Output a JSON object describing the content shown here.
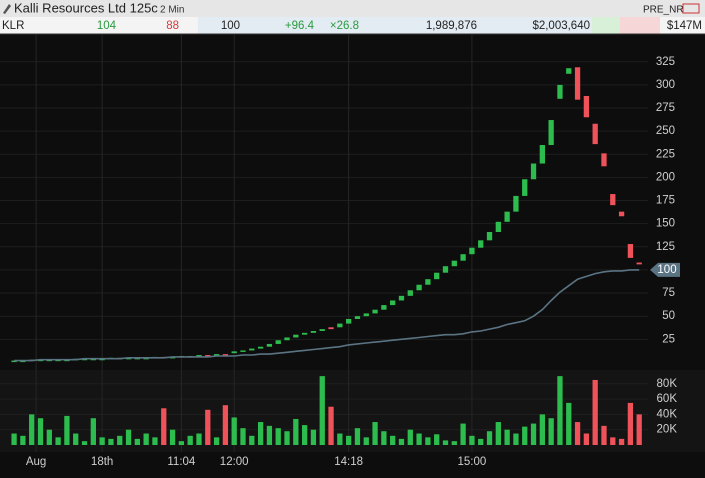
{
  "header": {
    "title": "Kalli Resources Ltd 125c",
    "interval": "2 Min",
    "status": "PRE_NR",
    "symbol": "KLR",
    "bid_size": "104",
    "ask_size": "88",
    "last": "100",
    "change": "+96.4",
    "ratio": "×26.8",
    "volume": "1,989,876",
    "dollar_volume": "$2,003,640",
    "market_cap": "$147M"
  },
  "chart_data": {
    "type": "candlestick",
    "up_color": "#2dbd4e",
    "down_color": "#f0525a",
    "vwap_color": "#5b7484",
    "xlim": [
      -1.6,
      72
    ],
    "xticks": [
      {
        "value": 2.5,
        "label": "Aug"
      },
      {
        "value": 10,
        "label": "18th"
      },
      {
        "value": 19,
        "label": "11:04"
      },
      {
        "value": 25,
        "label": "12:00"
      },
      {
        "value": 38,
        "label": "14:18"
      },
      {
        "value": 52,
        "label": "15:00"
      }
    ],
    "ylim": [
      -6,
      355
    ],
    "yticks": [
      25,
      50,
      75,
      100,
      125,
      150,
      175,
      200,
      225,
      250,
      275,
      300,
      325
    ],
    "vlim": [
      0,
      98000
    ],
    "vticks": [
      {
        "value": 20000,
        "label": "20K"
      },
      {
        "value": 40000,
        "label": "40K"
      },
      {
        "value": 60000,
        "label": "60K"
      },
      {
        "value": 80000,
        "label": "80K"
      }
    ],
    "open": [
      2,
      2,
      2,
      3,
      3,
      3,
      3,
      3,
      4,
      4,
      4,
      4,
      5,
      5,
      5,
      5,
      5,
      6,
      6,
      6,
      7,
      7,
      8,
      8,
      9,
      10,
      12,
      13,
      15,
      17,
      20,
      24,
      27,
      30,
      32,
      34,
      38,
      38,
      42,
      47,
      50,
      53,
      57,
      62,
      67,
      72,
      78,
      84,
      90,
      97,
      104,
      110,
      117,
      124,
      132,
      141,
      152,
      163,
      180,
      198,
      215,
      235,
      285,
      312,
      319,
      288,
      258,
      226,
      182,
      163,
      128,
      108
    ],
    "close": [
      2,
      2,
      3,
      3,
      3,
      3,
      3,
      4,
      4,
      4,
      4,
      5,
      5,
      5,
      5,
      5,
      6,
      5,
      6,
      7,
      7,
      8,
      7,
      9,
      8,
      12,
      13,
      15,
      17,
      20,
      24,
      27,
      30,
      32,
      34,
      36,
      36,
      42,
      47,
      50,
      53,
      57,
      62,
      67,
      72,
      78,
      84,
      90,
      97,
      104,
      110,
      117,
      124,
      132,
      141,
      152,
      163,
      180,
      198,
      215,
      235,
      262,
      300,
      318,
      284,
      265,
      236,
      212,
      170,
      158,
      113,
      106
    ],
    "volume": [
      15000,
      12000,
      40000,
      35000,
      20000,
      10000,
      38000,
      15000,
      5000,
      35000,
      10000,
      8000,
      12000,
      20000,
      8000,
      15000,
      10000,
      48000,
      20000,
      5000,
      12000,
      15000,
      46000,
      10000,
      52000,
      36000,
      22000,
      12000,
      30000,
      25000,
      22000,
      18000,
      34000,
      26000,
      20000,
      90000,
      50000,
      15000,
      12000,
      22000,
      10000,
      30000,
      18000,
      12000,
      8000,
      20000,
      15000,
      10000,
      14000,
      6000,
      5000,
      28000,
      12000,
      8000,
      18000,
      30000,
      20000,
      15000,
      24000,
      28000,
      40000,
      35000,
      90000,
      55000,
      30000,
      15000,
      85000,
      25000,
      10000,
      8000,
      55000,
      40000
    ],
    "vwap": [
      2,
      2,
      2,
      3,
      3,
      3,
      3,
      3,
      4,
      4,
      4,
      4,
      4,
      5,
      5,
      5,
      5,
      5,
      6,
      6,
      6,
      6,
      6,
      7,
      7,
      7,
      8,
      8,
      9,
      9,
      10,
      11,
      12,
      13,
      14,
      15,
      16,
      17,
      19,
      20,
      21,
      22,
      23,
      24,
      25,
      26,
      27,
      28,
      29,
      30,
      30,
      31,
      33,
      34,
      36,
      38,
      41,
      43,
      45,
      50,
      57,
      67,
      76,
      83,
      90,
      93,
      96,
      98,
      99,
      99,
      100,
      100
    ]
  }
}
